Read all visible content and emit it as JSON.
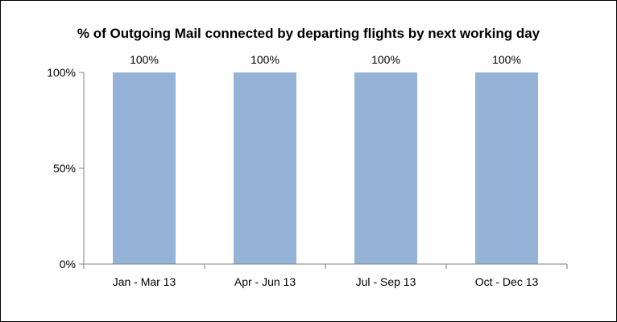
{
  "chart_data": {
    "type": "bar",
    "title": "% of Outgoing Mail connected by departing flights by next working day",
    "categories": [
      "Jan - Mar 13",
      "Apr - Jun 13",
      "Jul - Sep 13",
      "Oct - Dec 13"
    ],
    "values": [
      100,
      100,
      100,
      100
    ],
    "data_labels": [
      "100%",
      "100%",
      "100%",
      "100%"
    ],
    "ylim": [
      0,
      100
    ],
    "yticks": [
      0,
      50,
      100
    ],
    "ytick_labels": [
      "0%",
      "50%",
      "100%"
    ],
    "xlabel": "",
    "ylabel": "",
    "grid": false,
    "bar_color": "#95b3d7",
    "axis_color": "#808080"
  }
}
